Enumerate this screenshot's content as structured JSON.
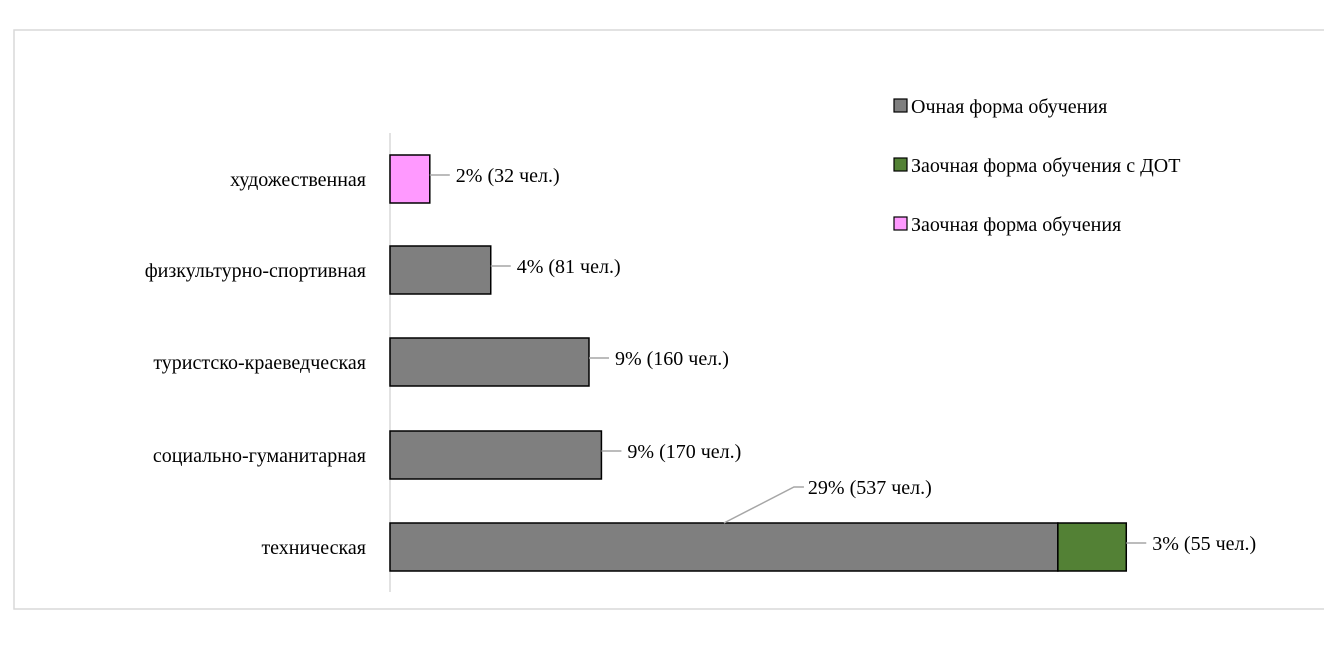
{
  "chart_data": {
    "type": "bar",
    "orientation": "horizontal",
    "stacked": true,
    "categories": [
      "художественная",
      "физкультурно-спортивная",
      "туристско-краеведческая",
      "социально-гуманитарная",
      "техническая"
    ],
    "series": [
      {
        "name": "Очная форма обучения",
        "color": "#7f7f7f",
        "values": [
          0,
          81,
          160,
          170,
          537
        ],
        "labels": [
          "",
          "4% (81 чел.)",
          "9% (160 чел.)",
          "9% (170 чел.)",
          "29% (537 чел.)"
        ]
      },
      {
        "name": "Заочная форма обучения с  ДОТ",
        "color": "#538135",
        "values": [
          0,
          0,
          0,
          0,
          55
        ],
        "labels": [
          "",
          "",
          "",
          "",
          "3% (55 чел.)"
        ]
      },
      {
        "name": "Заочная форма обучения",
        "color": "#ff99ff",
        "values": [
          32,
          0,
          0,
          0,
          0
        ],
        "labels": [
          "2% (32 чел.)",
          "",
          "",
          "",
          ""
        ]
      }
    ],
    "title": "",
    "xlabel": "",
    "ylabel": "",
    "xlim": [
      0,
      900
    ],
    "grid": false,
    "legend_position": "top-right"
  }
}
